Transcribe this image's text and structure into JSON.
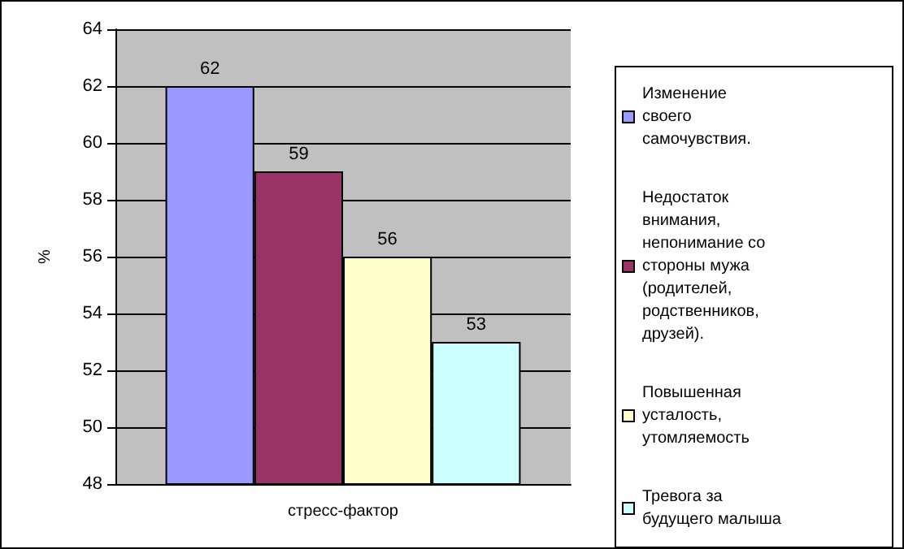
{
  "chart_data": {
    "type": "bar",
    "ylabel": "%",
    "categories": [
      "стресс-фактор"
    ],
    "series": [
      {
        "name": "Изменение своего самочувствия.",
        "color": "#9999ff",
        "values": [
          62
        ]
      },
      {
        "name": "Недостаток внимания, непонимание со стороны мужа (родителей, родственников, друзей).",
        "color": "#993366",
        "values": [
          59
        ]
      },
      {
        "name": "Повышенная усталость, утомляемость",
        "color": "#ffffcc",
        "values": [
          56
        ]
      },
      {
        "name": "Тревога за будущего малыша",
        "color": "#ccffff",
        "values": [
          53
        ]
      }
    ],
    "ylim": [
      48,
      64
    ],
    "yticks": [
      48,
      50,
      52,
      54,
      56,
      58,
      60,
      62,
      64
    ],
    "grid": "y",
    "legend": "right",
    "data_labels": true
  }
}
